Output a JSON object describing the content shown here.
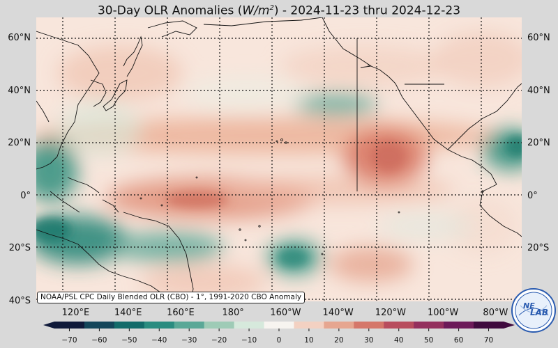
{
  "title": {
    "prefix": "30-Day OLR Anomalies (",
    "unit_main": "W/m",
    "unit_exp": "2",
    "suffix": ") - 2024-11-23 thru 2024-12-23"
  },
  "map_data": {
    "type": "map",
    "projection": "equirectangular",
    "region": "Pacific Ocean",
    "lon_range": [
      105,
      290
    ],
    "lat_range": [
      -40,
      68
    ],
    "lat_labels": [
      "60°N",
      "40°N",
      "20°N",
      "0°",
      "20°S",
      "40°S"
    ],
    "lat_values": [
      60,
      40,
      20,
      0,
      -20,
      -40
    ],
    "lon_labels": [
      "120°E",
      "140°E",
      "160°E",
      "180°",
      "160°W",
      "140°W",
      "120°W",
      "100°W",
      "80°W"
    ],
    "lon_values": [
      120,
      140,
      160,
      180,
      200,
      220,
      240,
      260,
      280
    ],
    "gridlines": true,
    "gridline_style": "dotted",
    "colormap": "diverging teal-white-red",
    "anomaly_features": [
      {
        "description": "negative anomaly",
        "lon": 113,
        "lat": 12,
        "value": -30
      },
      {
        "description": "negative anomaly",
        "lon": 110,
        "lat": -13,
        "value": -40
      },
      {
        "description": "negative anomaly",
        "lon": 150,
        "lat": -17,
        "value": -30
      },
      {
        "description": "negative anomaly",
        "lon": 203,
        "lat": -18,
        "value": -30
      },
      {
        "description": "negative anomaly",
        "lon": 212,
        "lat": 34,
        "value": -25
      },
      {
        "description": "negative anomaly",
        "lon": 285,
        "lat": 18,
        "value": -35
      },
      {
        "description": "positive anomaly",
        "lon": 172,
        "lat": -2,
        "value": 30
      },
      {
        "description": "positive anomaly",
        "lon": 233,
        "lat": 16,
        "value": 35
      },
      {
        "description": "positive anomaly",
        "lon": 190,
        "lat": 24,
        "value": 15
      },
      {
        "description": "positive anomaly",
        "lon": 238,
        "lat": -26,
        "value": 20
      }
    ]
  },
  "source_note": "NOAA/PSL CPC Daily Blended OLR (CBO) - 1°, 1991-2020 CBO Anomaly",
  "colorbar": {
    "ticks": [
      "−70",
      "−60",
      "−50",
      "−40",
      "−30",
      "−20",
      "−10",
      "0",
      "10",
      "20",
      "30",
      "40",
      "50",
      "60",
      "70"
    ],
    "tick_values": [
      -70,
      -60,
      -50,
      -40,
      -30,
      -20,
      -10,
      0,
      10,
      20,
      30,
      40,
      50,
      60,
      70
    ],
    "range": [
      -75,
      75
    ],
    "colors": [
      "#101a3a",
      "#14465a",
      "#136b6a",
      "#2a8c80",
      "#5aa897",
      "#9ecbb6",
      "#d6e9dc",
      "#f7f4f0",
      "#f3d1c2",
      "#e6a690",
      "#d5776a",
      "#b84d5e",
      "#94305e",
      "#6c1a59",
      "#3f0a3e"
    ]
  },
  "logo": {
    "text_top": "NE",
    "text_main": "LAB",
    "color": "#2a5bb0"
  }
}
